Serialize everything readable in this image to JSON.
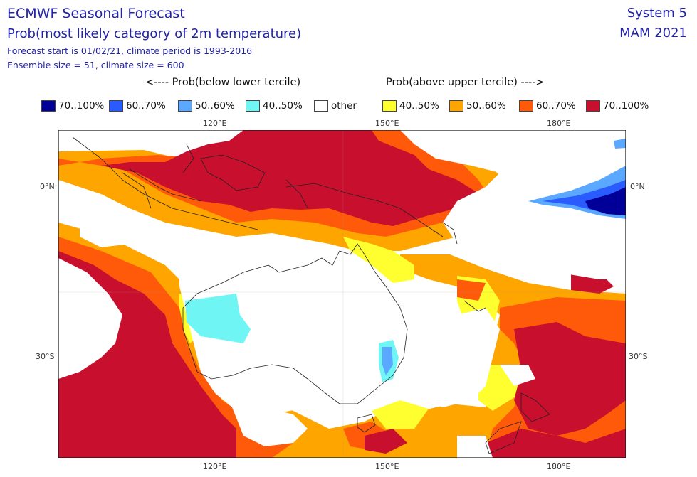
{
  "header": {
    "title": "ECMWF Seasonal Forecast",
    "subtitle": "Prob(most likely category of 2m temperature)",
    "line1": "Forecast start is 01/02/21, climate period is 1993-2016",
    "line2": "Ensemble size = 51, climate size = 600",
    "system": "System 5",
    "season": "MAM 2021"
  },
  "legend": {
    "below_label": "<---- Prob(below lower tercile)",
    "above_label": "Prob(above upper tercile) ---->",
    "items": [
      {
        "label": "70..100%",
        "color": "#000099"
      },
      {
        "label": "60..70%",
        "color": "#2a5bff"
      },
      {
        "label": "50..60%",
        "color": "#5aa8ff"
      },
      {
        "label": "40..50%",
        "color": "#70f5f5"
      },
      {
        "label": "other",
        "color": "#ffffff"
      },
      {
        "label": "40..50%",
        "color": "#ffff30"
      },
      {
        "label": "50..60%",
        "color": "#ffa500"
      },
      {
        "label": "60..70%",
        "color": "#ff5a0a"
      },
      {
        "label": "70..100%",
        "color": "#c8102e"
      }
    ]
  },
  "axes": {
    "lon_labels": [
      "120°E",
      "150°E",
      "180°E"
    ],
    "lat_labels": [
      "0°N",
      "30°S"
    ]
  }
}
